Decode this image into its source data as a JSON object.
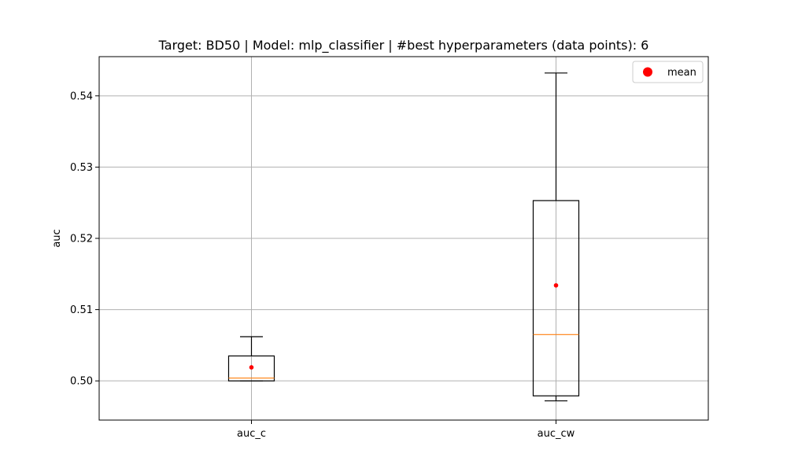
{
  "chart_data": {
    "type": "box",
    "title": "Target: BD50 | Model: mlp_classifier | #best hyperparameters (data points): 6",
    "xlabel": "",
    "ylabel": "auc",
    "ylim": [
      0.4945,
      0.5455
    ],
    "yticks": [
      0.5,
      0.51,
      0.52,
      0.53,
      0.54
    ],
    "ytick_labels": [
      "0.50",
      "0.51",
      "0.52",
      "0.53",
      "0.54"
    ],
    "categories": [
      "auc_c",
      "auc_cw"
    ],
    "boxes": [
      {
        "name": "auc_c",
        "whisker_low": 0.5,
        "q1": 0.5,
        "median": 0.5004,
        "q3": 0.5035,
        "whisker_high": 0.5062,
        "mean": 0.5019
      },
      {
        "name": "auc_cw",
        "whisker_low": 0.4972,
        "q1": 0.4979,
        "median": 0.5065,
        "q3": 0.5253,
        "whisker_high": 0.5432,
        "mean": 0.5134
      }
    ],
    "grid": true,
    "legend": {
      "position": "top-right",
      "entries": [
        {
          "label": "mean",
          "color": "#ff0000"
        }
      ]
    },
    "colors": {
      "box": "#000000",
      "median": "#ff7f0e",
      "mean": "#ff0000",
      "grid": "#b0b0b0"
    }
  }
}
